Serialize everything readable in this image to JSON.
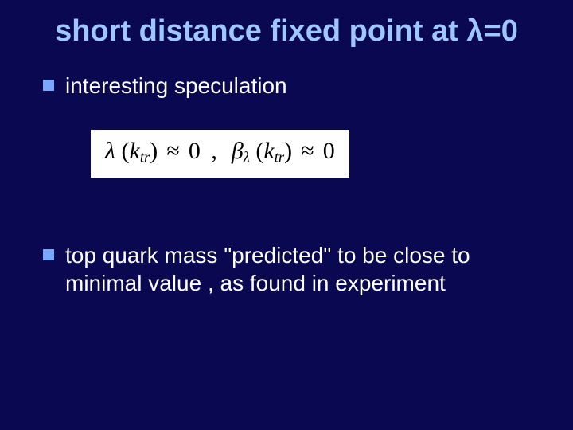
{
  "slide": {
    "background_color": "#0a0850",
    "title": {
      "text": "short distance fixed point at λ=0",
      "color": "#9fc7ff",
      "fontsize_pt": 38
    },
    "bullets": [
      {
        "text": "interesting speculation",
        "marker_color": "#7ba8ff",
        "text_color": "#ffffff",
        "fontsize_pt": 28
      },
      {
        "text": "top quark mass \"predicted\" to be close to minimal value , as found in experiment",
        "marker_color": "#7ba8ff",
        "text_color": "#ffffff",
        "fontsize_pt": 28
      }
    ],
    "equation": {
      "background_color": "#ffffff",
      "text_color": "#000000",
      "fontsize_pt": 30,
      "lambda_symbol": "λ",
      "beta_symbol": "β",
      "k_var": "k",
      "k_sub": "tr",
      "approx": "≈",
      "zero": "0",
      "open_paren": "(",
      "close_paren": ")",
      "comma": ","
    }
  }
}
